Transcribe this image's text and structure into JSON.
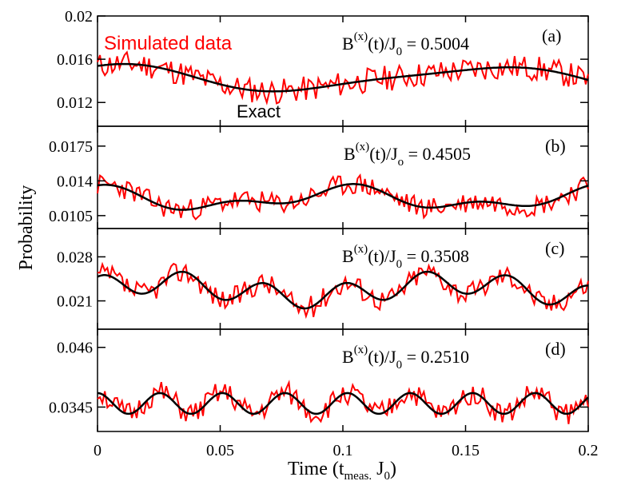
{
  "chart_data": {
    "type": "line",
    "xlabel_main": "Time (t",
    "xlabel_sub": "meas.",
    "xlabel_tail": " J",
    "xlabel_sub2": "0",
    "xlabel_close": ")",
    "ylabel": "Probability",
    "xlim": [
      0,
      0.2
    ],
    "xticks": [
      0,
      0.05,
      0.1,
      0.15,
      0.2
    ],
    "xtick_labels": [
      "0",
      "0.05",
      "0.1",
      "0.15",
      "0.2"
    ],
    "legend": {
      "simulated": "Simulated data",
      "exact": "Exact"
    },
    "colors": {
      "simulated": "#ff0000",
      "exact": "#000000"
    },
    "panels": [
      {
        "label": "(a)",
        "annotation_prefix": "B",
        "annotation_sup": "(x)",
        "annotation_mid": "(t)/J",
        "annotation_sub": "0",
        "annotation_value": " = 0.5004",
        "ylim": [
          0.0098,
          0.02
        ],
        "yticks": [
          0.012,
          0.016,
          0.02
        ],
        "ytick_labels": [
          "0.012",
          "0.016",
          "0.02"
        ],
        "exact": {
          "base": 0.0142,
          "components": [
            [
              0.0011,
              0.15,
              1.3
            ],
            [
              0.0003,
              0.085,
              0.4
            ]
          ]
        },
        "noise_amp": 0.0012,
        "seed": 11
      },
      {
        "label": "(b)",
        "annotation_prefix": "B",
        "annotation_sup": "(x)",
        "annotation_mid": "(t)/J",
        "annotation_sub": "o",
        "annotation_value": " = 0.4505",
        "ylim": [
          0.0092,
          0.0195
        ],
        "yticks": [
          0.0105,
          0.014,
          0.0175
        ],
        "ytick_labels": [
          "0.0105",
          "0.014",
          "0.0175"
        ],
        "exact": {
          "base": 0.0122,
          "components": [
            [
              0.0009,
              0.105,
              1.8
            ],
            [
              0.0006,
              0.05,
              0.9
            ]
          ]
        },
        "noise_amp": 0.0011,
        "seed": 23
      },
      {
        "label": "(c)",
        "annotation_prefix": "B",
        "annotation_sup": "(x)",
        "annotation_mid": "(t)/J",
        "annotation_sub": "0",
        "annotation_value": " = 0.3508",
        "ylim": [
          0.0165,
          0.0325
        ],
        "yticks": [
          0.021,
          0.028
        ],
        "ytick_labels": [
          "0.021",
          "0.028"
        ],
        "exact": {
          "base": 0.0228,
          "components": [
            [
              0.0018,
              0.033,
              1.2
            ],
            [
              0.0012,
              0.12,
              0.3
            ]
          ]
        },
        "noise_amp": 0.0018,
        "seed": 37
      },
      {
        "label": "(d)",
        "annotation_prefix": "B",
        "annotation_sup": "(x)",
        "annotation_mid": "(t)/J",
        "annotation_sub": "0",
        "annotation_value": " = 0.2510",
        "ylim": [
          0.0298,
          0.0495
        ],
        "yticks": [
          0.0345,
          0.046
        ],
        "ytick_labels": [
          "0.0345",
          "0.046"
        ],
        "exact": {
          "base": 0.0352,
          "components": [
            [
              0.002,
              0.0255,
              1.6
            ]
          ]
        },
        "noise_amp": 0.0022,
        "seed": 51
      }
    ]
  }
}
